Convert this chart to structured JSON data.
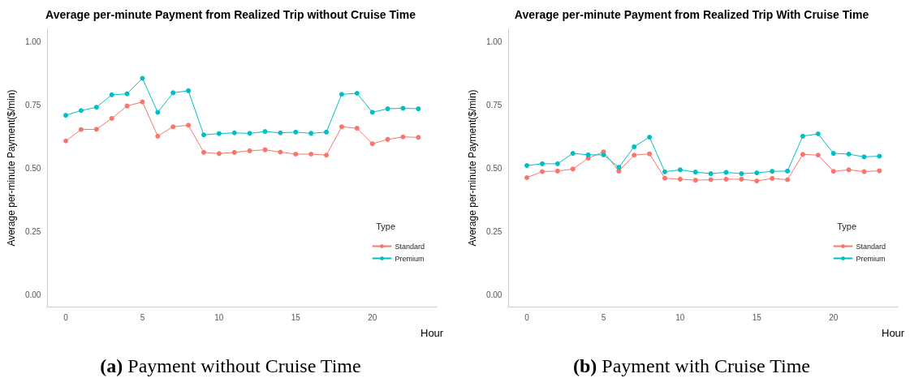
{
  "chart_data": [
    {
      "type": "line",
      "title": "Average per-minute Payment from Realized Trip without Cruise Time",
      "xlabel": "Hour",
      "ylabel": "Average per-minute Payment($/min)",
      "legend_title": "Type",
      "legend": "bottom right",
      "grid": false,
      "marker": "circle",
      "line_style": "solid",
      "xlim": [
        -1.2,
        24.2
      ],
      "xticks": [
        0,
        5,
        10,
        15,
        20
      ],
      "ylim": [
        -0.045,
        1.05
      ],
      "yticks": [
        {
          "value": 0,
          "label": "0.00"
        },
        {
          "value": 0.25,
          "label": "0.25"
        },
        {
          "value": 0.5,
          "label": "0.50"
        },
        {
          "value": 0.75,
          "label": "0.75"
        },
        {
          "value": 1,
          "label": "1.00"
        }
      ],
      "x": [
        0,
        1,
        2,
        3,
        4,
        5,
        6,
        7,
        8,
        9,
        10,
        11,
        12,
        13,
        14,
        15,
        16,
        17,
        18,
        19,
        20,
        21,
        22,
        23
      ],
      "series": [
        {
          "name": "Standard",
          "color": "#f8766d",
          "values": [
            0.609,
            0.654,
            0.655,
            0.698,
            0.747,
            0.763,
            0.628,
            0.665,
            0.671,
            0.564,
            0.559,
            0.564,
            0.57,
            0.574,
            0.565,
            0.557,
            0.557,
            0.553,
            0.665,
            0.659,
            0.598,
            0.615,
            0.625,
            0.623
          ]
        },
        {
          "name": "Premium",
          "color": "#00bfc4",
          "values": [
            0.71,
            0.729,
            0.742,
            0.791,
            0.795,
            0.856,
            0.722,
            0.799,
            0.807,
            0.633,
            0.638,
            0.641,
            0.639,
            0.646,
            0.641,
            0.644,
            0.639,
            0.644,
            0.793,
            0.797,
            0.722,
            0.736,
            0.738,
            0.736
          ]
        }
      ],
      "annotations": [
        "(a) Payment without Cruise Time"
      ]
    },
    {
      "type": "line",
      "title": "Average per-minute Payment from Realized Trip With Cruise Time",
      "xlabel": "Hour",
      "ylabel": "Average per-minute Payment($/min)",
      "legend_title": "Type",
      "legend": "bottom right",
      "grid": false,
      "marker": "circle",
      "line_style": "solid",
      "xlim": [
        -1.2,
        24.2
      ],
      "xticks": [
        0,
        5,
        10,
        15,
        20
      ],
      "ylim": [
        -0.045,
        1.05
      ],
      "yticks": [
        {
          "value": 0,
          "label": "0.00"
        },
        {
          "value": 0.25,
          "label": "0.25"
        },
        {
          "value": 0.5,
          "label": "0.50"
        },
        {
          "value": 0.75,
          "label": "0.75"
        },
        {
          "value": 1,
          "label": "1.00"
        }
      ],
      "x": [
        0,
        1,
        2,
        3,
        4,
        5,
        6,
        7,
        8,
        9,
        10,
        11,
        12,
        13,
        14,
        15,
        16,
        17,
        18,
        19,
        20,
        21,
        22,
        23
      ],
      "series": [
        {
          "name": "Standard",
          "color": "#f8766d",
          "values": [
            0.464,
            0.488,
            0.49,
            0.498,
            0.541,
            0.566,
            0.49,
            0.553,
            0.558,
            0.462,
            0.458,
            0.454,
            0.456,
            0.458,
            0.458,
            0.451,
            0.461,
            0.456,
            0.556,
            0.553,
            0.489,
            0.495,
            0.488,
            0.491
          ]
        },
        {
          "name": "Premium",
          "color": "#00bfc4",
          "values": [
            0.512,
            0.519,
            0.519,
            0.56,
            0.554,
            0.554,
            0.505,
            0.586,
            0.624,
            0.487,
            0.495,
            0.486,
            0.48,
            0.485,
            0.48,
            0.483,
            0.489,
            0.49,
            0.628,
            0.637,
            0.56,
            0.557,
            0.546,
            0.549
          ]
        }
      ],
      "annotations": [
        "(b) Payment with Cruise Time"
      ]
    }
  ]
}
